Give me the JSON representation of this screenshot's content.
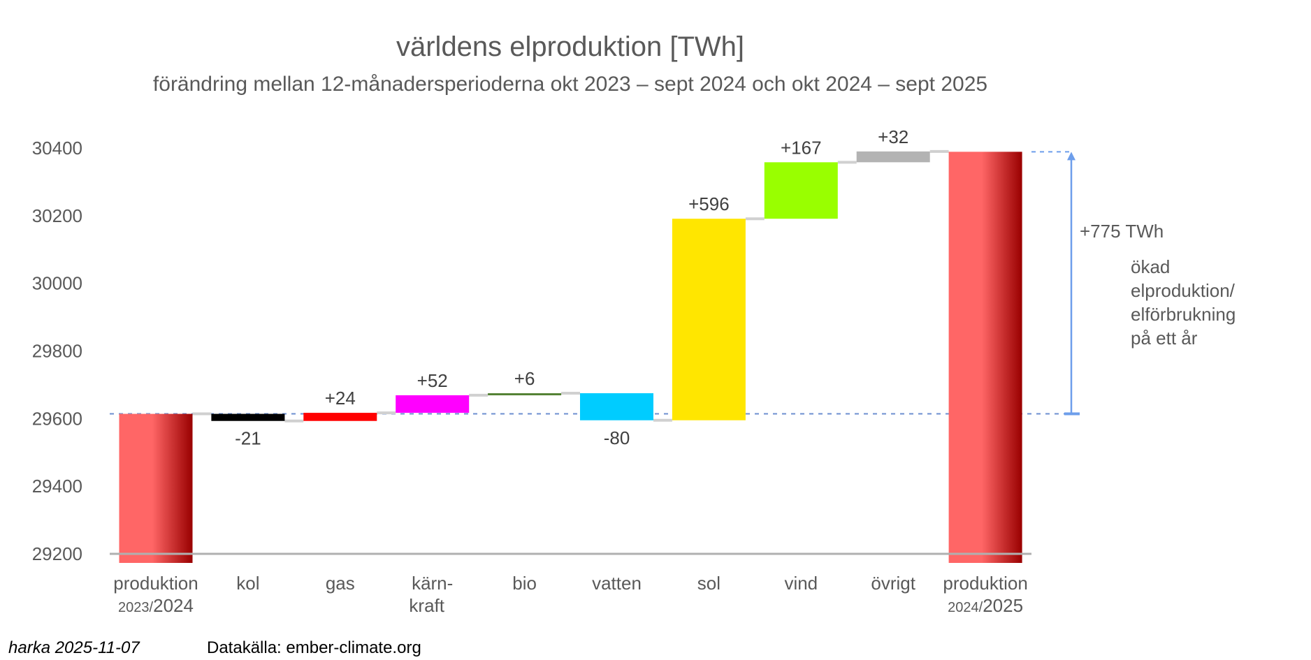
{
  "chart_data": {
    "type": "waterfall",
    "title": "världens elproduktion [TWh]",
    "subtitle": "förändring mellan 12-månadersperioderna okt 2023 – sept 2024 och okt 2024 – sept 2025",
    "xlabel": "",
    "ylabel": "",
    "ylim": [
      29200,
      30400
    ],
    "yticks": [
      29200,
      29400,
      29600,
      29800,
      30000,
      30200,
      30400
    ],
    "grid": false,
    "start_value": 29614,
    "categories": [
      {
        "key": "start",
        "label": "produktion",
        "sublabel_small": "2023/",
        "sublabel_big": "2024",
        "kind": "total",
        "value": 29614,
        "color": "gradient-red",
        "data_label": ""
      },
      {
        "key": "kol",
        "label": "kol",
        "kind": "delta",
        "value": -21,
        "color": "#000000",
        "data_label": "-21"
      },
      {
        "key": "gas",
        "label": "gas",
        "kind": "delta",
        "value": 24,
        "color": "#ff0000",
        "data_label": "+24"
      },
      {
        "key": "karnkraft",
        "label": "kärn-",
        "label2": "kraft",
        "kind": "delta",
        "value": 52,
        "color": "#ff00ff",
        "data_label": "+52"
      },
      {
        "key": "bio",
        "label": "bio",
        "kind": "delta",
        "value": 6,
        "color": "#548235",
        "data_label": "+6"
      },
      {
        "key": "vatten",
        "label": "vatten",
        "kind": "delta",
        "value": -80,
        "color": "#00ccff",
        "data_label": "-80"
      },
      {
        "key": "sol",
        "label": "sol",
        "kind": "delta",
        "value": 596,
        "color": "#ffe600",
        "data_label": "+596"
      },
      {
        "key": "vind",
        "label": "vind",
        "kind": "delta",
        "value": 167,
        "color": "#99ff00",
        "data_label": "+167"
      },
      {
        "key": "ovrigt",
        "label": "övrigt",
        "kind": "delta",
        "value": 32,
        "color": "#b3b3b3",
        "data_label": "+32"
      },
      {
        "key": "end",
        "label": "produktion",
        "sublabel_small": "2024/",
        "sublabel_big": "2025",
        "kind": "total",
        "value": 30389,
        "color": "gradient-red",
        "data_label": ""
      }
    ],
    "annotation": {
      "arrow_from": 29614,
      "arrow_to": 30389,
      "label": "+775 TWh",
      "note_lines": [
        "ökad",
        "elproduktion/",
        "elförbrukning",
        "på ett år"
      ],
      "color": "#6d9eeb"
    },
    "colors": {
      "total_light": "#ff6666",
      "total_dark": "#990000",
      "connector": "#d0d0d0",
      "axis": "#b0b0b0",
      "reference_line": "#6d8fd0"
    }
  },
  "footer": {
    "author": "harka 2025-11-07",
    "source": "Datakälla: ember-climate.org"
  }
}
